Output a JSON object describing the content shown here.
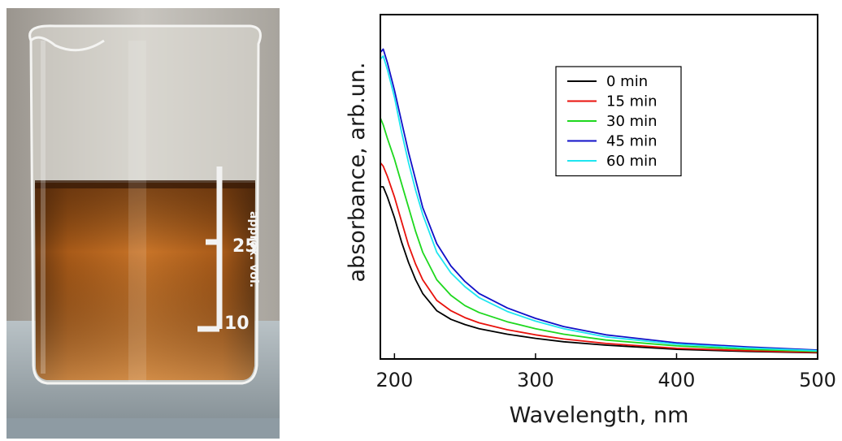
{
  "photo": {
    "subject": "glass beaker with amber-brown solution",
    "markings": {
      "mark_25": "25",
      "mark_10": "10",
      "vertical_text": "approx. vol."
    }
  },
  "chart_data": {
    "type": "line",
    "xlabel": "Wavelength, nm",
    "ylabel": "absorbance, arb.un.",
    "xlim": [
      190,
      500
    ],
    "ylim": [
      0,
      1.0
    ],
    "xticks": [
      200,
      300,
      400,
      500
    ],
    "yticks": [],
    "grid": false,
    "legend_position": "top-right",
    "series": [
      {
        "name": "0 min",
        "color": "#000000",
        "x": [
          190,
          192,
          195,
          200,
          205,
          210,
          215,
          220,
          230,
          240,
          250,
          260,
          280,
          300,
          320,
          350,
          400,
          450,
          500
        ],
        "y": [
          0.5,
          0.5,
          0.47,
          0.41,
          0.34,
          0.28,
          0.23,
          0.19,
          0.14,
          0.115,
          0.1,
          0.088,
          0.072,
          0.06,
          0.05,
          0.04,
          0.028,
          0.022,
          0.018
        ]
      },
      {
        "name": "15 min",
        "color": "#e8120c",
        "x": [
          190,
          192,
          195,
          200,
          205,
          210,
          215,
          220,
          230,
          240,
          250,
          260,
          280,
          300,
          320,
          350,
          400,
          450,
          500
        ],
        "y": [
          0.57,
          0.56,
          0.53,
          0.47,
          0.4,
          0.33,
          0.275,
          0.23,
          0.17,
          0.14,
          0.12,
          0.105,
          0.085,
          0.07,
          0.058,
          0.045,
          0.031,
          0.024,
          0.019
        ]
      },
      {
        "name": "30 min",
        "color": "#1ed81e",
        "x": [
          190,
          192,
          195,
          200,
          205,
          210,
          215,
          220,
          230,
          240,
          250,
          260,
          280,
          300,
          320,
          350,
          400,
          450,
          500
        ],
        "y": [
          0.7,
          0.68,
          0.64,
          0.58,
          0.51,
          0.44,
          0.37,
          0.31,
          0.23,
          0.185,
          0.155,
          0.135,
          0.108,
          0.088,
          0.072,
          0.055,
          0.038,
          0.028,
          0.022
        ]
      },
      {
        "name": "45 min",
        "color": "#1010c8",
        "x": [
          190,
          192,
          195,
          200,
          205,
          210,
          215,
          220,
          230,
          240,
          250,
          260,
          280,
          300,
          320,
          350,
          400,
          450,
          500
        ],
        "y": [
          0.89,
          0.9,
          0.86,
          0.78,
          0.69,
          0.6,
          0.52,
          0.44,
          0.335,
          0.27,
          0.225,
          0.19,
          0.148,
          0.118,
          0.094,
          0.07,
          0.047,
          0.035,
          0.026
        ]
      },
      {
        "name": "60 min",
        "color": "#1ee6f0",
        "x": [
          190,
          192,
          195,
          200,
          205,
          210,
          215,
          220,
          230,
          240,
          250,
          260,
          280,
          300,
          320,
          350,
          400,
          450,
          500
        ],
        "y": [
          0.87,
          0.88,
          0.84,
          0.76,
          0.66,
          0.57,
          0.49,
          0.42,
          0.31,
          0.25,
          0.21,
          0.178,
          0.138,
          0.11,
          0.088,
          0.064,
          0.043,
          0.032,
          0.024
        ]
      }
    ]
  }
}
